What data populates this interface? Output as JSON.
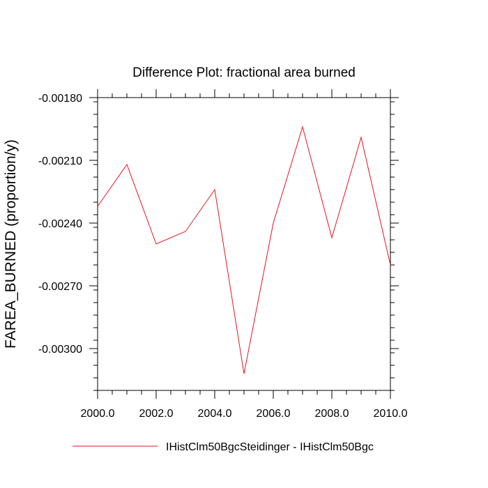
{
  "chart_data": {
    "type": "line",
    "title": "Difference Plot: fractional area burned",
    "xlabel": "",
    "ylabel": "FAREA_BURNED  (proportion/y)",
    "xlim": [
      2000,
      2010
    ],
    "ylim": [
      -0.0032,
      -0.0018
    ],
    "x_ticks": [
      2000,
      2002,
      2004,
      2006,
      2008,
      2010
    ],
    "x_tick_labels": [
      "2000.0",
      "2002.0",
      "2004.0",
      "2006.0",
      "2008.0",
      "2010.0"
    ],
    "y_ticks": [
      -0.0018,
      -0.0021,
      -0.0024,
      -0.0027,
      -0.003
    ],
    "y_tick_labels": [
      "-0.00180",
      "-0.00210",
      "-0.00240",
      "-0.00270",
      "-0.00300"
    ],
    "grid": false,
    "legend_position": "bottom",
    "series": [
      {
        "name": "IHistClm50BgcSteidinger - IHistClm50Bgc",
        "color": "#e8141e",
        "x": [
          2000,
          2001,
          2002,
          2003,
          2004,
          2005,
          2006,
          2007,
          2008,
          2009,
          2010
        ],
        "y": [
          -0.00232,
          -0.00212,
          -0.0025,
          -0.00244,
          -0.00224,
          -0.00312,
          -0.0024,
          -0.00194,
          -0.00247,
          -0.00199,
          -0.0026
        ]
      }
    ]
  }
}
